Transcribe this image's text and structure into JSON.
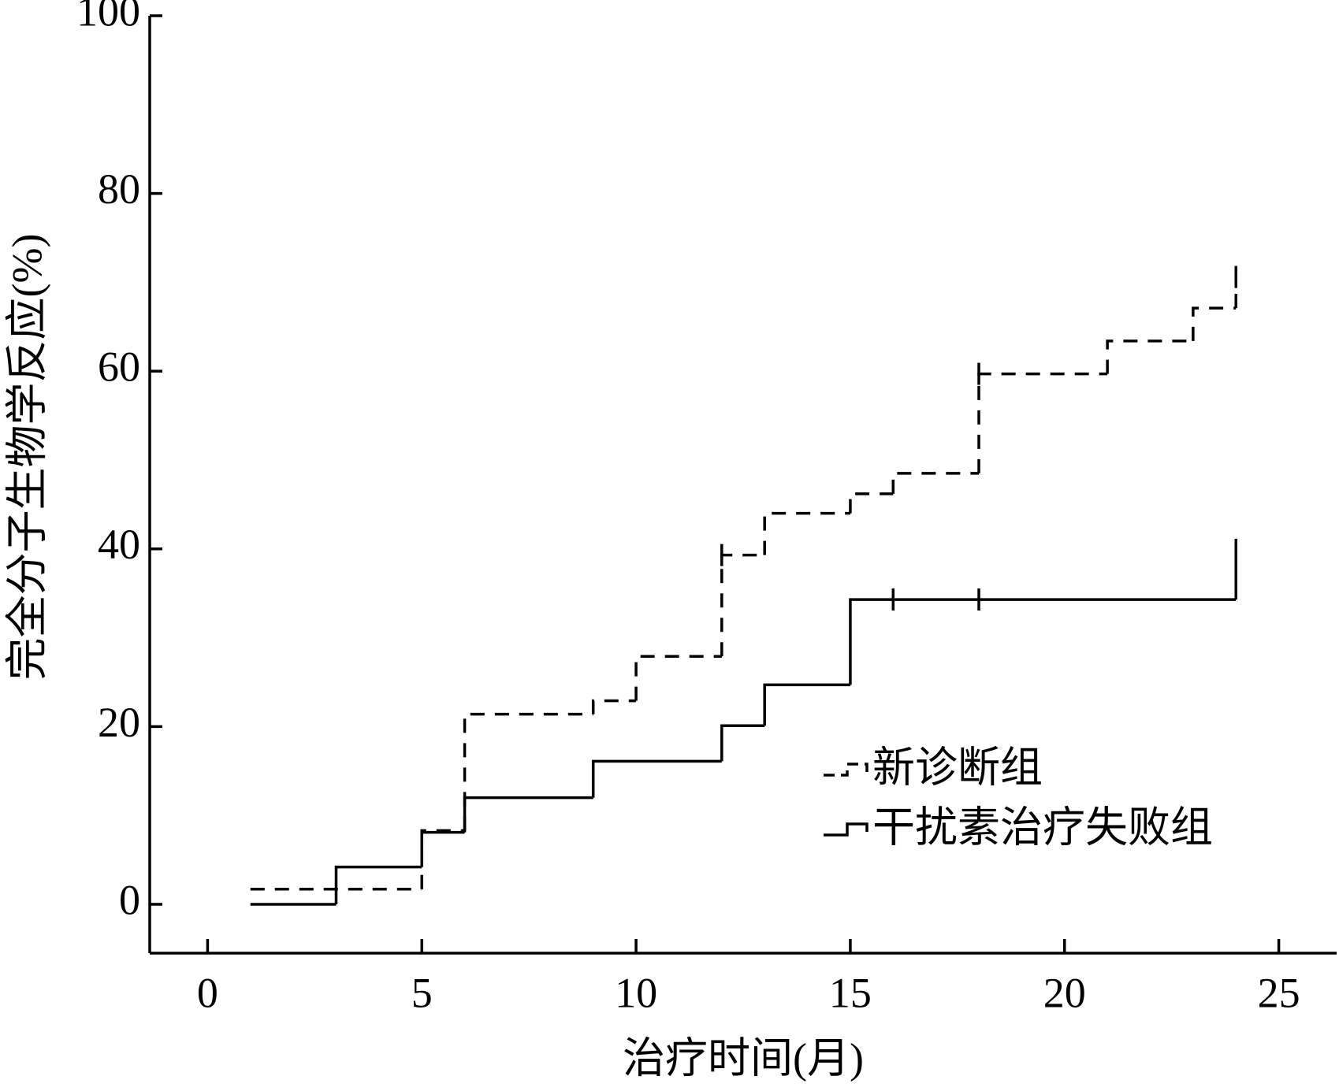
{
  "chart_data": {
    "type": "step",
    "y_label": "完全分子生物学反应(%)",
    "x_label": "治疗时间(月)",
    "xlim": [
      -1.35,
      26.35
    ],
    "xticks": [
      0,
      5,
      10,
      15,
      20,
      25
    ],
    "ylim": [
      -5.5,
      100
    ],
    "yticks": [
      0,
      20,
      40,
      60,
      80,
      100
    ],
    "legend": "lower right",
    "series": [
      {
        "name": "新诊断组",
        "color": "#000000",
        "dashed": true,
        "x": [
          1,
          5,
          6,
          9,
          10,
          12,
          13,
          15,
          16,
          18,
          21,
          23,
          24
        ],
        "values": [
          1.7,
          8.3,
          21.4,
          22.9,
          27.9,
          39.3,
          44,
          46.2,
          48.5,
          59.7,
          63.4,
          67.1,
          70.6
        ],
        "censor_x": [
          12,
          18,
          24
        ]
      },
      {
        "name": "干扰素治疗失败组",
        "color": "#000000",
        "dashed": false,
        "x": [
          1,
          3,
          5,
          6,
          9,
          12,
          13,
          15,
          24
        ],
        "values": [
          0,
          4.2,
          8.1,
          12,
          16.1,
          20.1,
          24.7,
          34.3,
          39.9
        ],
        "censor_x": [
          16,
          18,
          24
        ]
      }
    ]
  }
}
